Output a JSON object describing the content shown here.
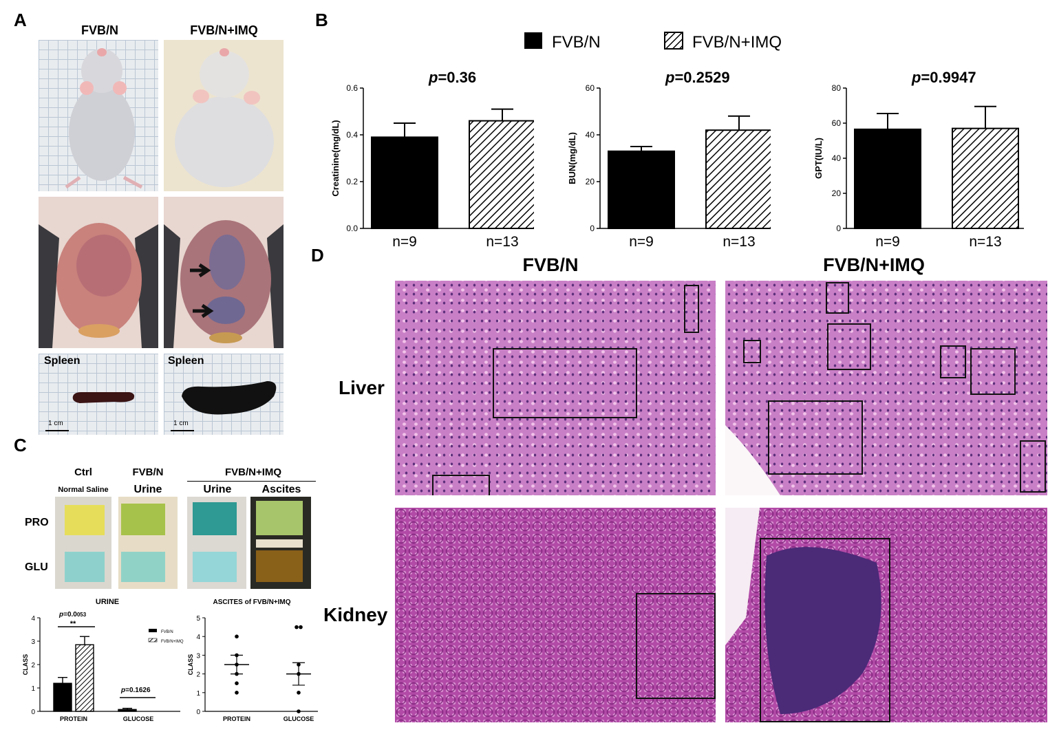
{
  "panelA": {
    "label": "A",
    "col1": "FVB/N",
    "col2": "FVB/N+IMQ",
    "spleen_label_1": "Spleen",
    "spleen_label_2": "Spleen",
    "scale_1": "1 cm",
    "scale_2": "1 cm"
  },
  "panelB": {
    "label": "B",
    "legend": [
      "FVB/N",
      "FVB/N+IMQ"
    ]
  },
  "panelC": {
    "label": "C",
    "col_ctrl": "Ctrl",
    "col_fvb": "FVB/N",
    "col_imq": "FVB/N+IMQ",
    "sub_saline": "Normal Saline",
    "sub_urine1": "Urine",
    "sub_urine2": "Urine",
    "sub_ascites": "Ascites",
    "row_pro": "PRO",
    "row_glu": "GLU"
  },
  "panelD": {
    "label": "D",
    "col1": "FVB/N",
    "col2": "FVB/N+IMQ",
    "row1": "Liver",
    "row2": "Kidney"
  },
  "chart_data": [
    {
      "type": "bar",
      "ylabel": "Creatinine(mg/dL)",
      "categories": [
        "n=9",
        "n=13"
      ],
      "values": [
        0.39,
        0.46
      ],
      "errors": [
        0.06,
        0.05
      ],
      "ylim": [
        0,
        0.6
      ],
      "yticks": [
        "0.0",
        "0.2",
        "0.4",
        "0.6"
      ],
      "pvalue_prefix": "p",
      "pvalue_text": "=0.36"
    },
    {
      "type": "bar",
      "ylabel": "BUN(mg/dL)",
      "categories": [
        "n=9",
        "n=13"
      ],
      "values": [
        33,
        42
      ],
      "errors": [
        2,
        6
      ],
      "ylim": [
        0,
        60
      ],
      "yticks": [
        "0",
        "20",
        "40",
        "60"
      ],
      "pvalue_prefix": "p",
      "pvalue_text": "=0.2529"
    },
    {
      "type": "bar",
      "ylabel": "GPT(IU/L)",
      "categories": [
        "n=9",
        "n=13"
      ],
      "values": [
        56.5,
        57
      ],
      "errors": [
        9,
        12.5
      ],
      "ylim": [
        0,
        80
      ],
      "yticks": [
        "0",
        "20",
        "40",
        "60",
        "80"
      ],
      "pvalue_prefix": "p",
      "pvalue_text": "=0.9947"
    },
    {
      "type": "bar",
      "title": "URINE",
      "ylabel": "CLASS",
      "categories": [
        "PROTEIN",
        "GLUCOSE"
      ],
      "series": [
        {
          "name": "FVB/N",
          "values": [
            1.2,
            0.08
          ],
          "errors": [
            0.25,
            0.05
          ]
        },
        {
          "name": "FVB/N+IMQ",
          "values": [
            2.85,
            0
          ],
          "errors": [
            0.35,
            0
          ]
        }
      ],
      "ylim": [
        0,
        4
      ],
      "yticks": [
        "0",
        "1",
        "2",
        "3",
        "4"
      ],
      "p1_prefix": "p",
      "p1_text": "=0.0",
      "p1_small": "053",
      "sig": "**",
      "p2_prefix": "p",
      "p2_text": "=0.1626"
    },
    {
      "type": "scatter",
      "title": "ASCITES of FVB/N+IMQ",
      "ylabel": "CLASS",
      "categories": [
        "PROTEIN",
        "GLUCOSE"
      ],
      "points": [
        [
          4,
          3,
          2.5,
          2,
          1.5,
          1
        ],
        [
          4.5,
          4.5,
          2.5,
          2,
          1,
          0
        ]
      ],
      "means": [
        2.5,
        2
      ],
      "sem": [
        0.5,
        0.6
      ],
      "ylim": [
        0,
        5
      ],
      "yticks": [
        "0",
        "1",
        "2",
        "3",
        "4",
        "5"
      ]
    }
  ]
}
